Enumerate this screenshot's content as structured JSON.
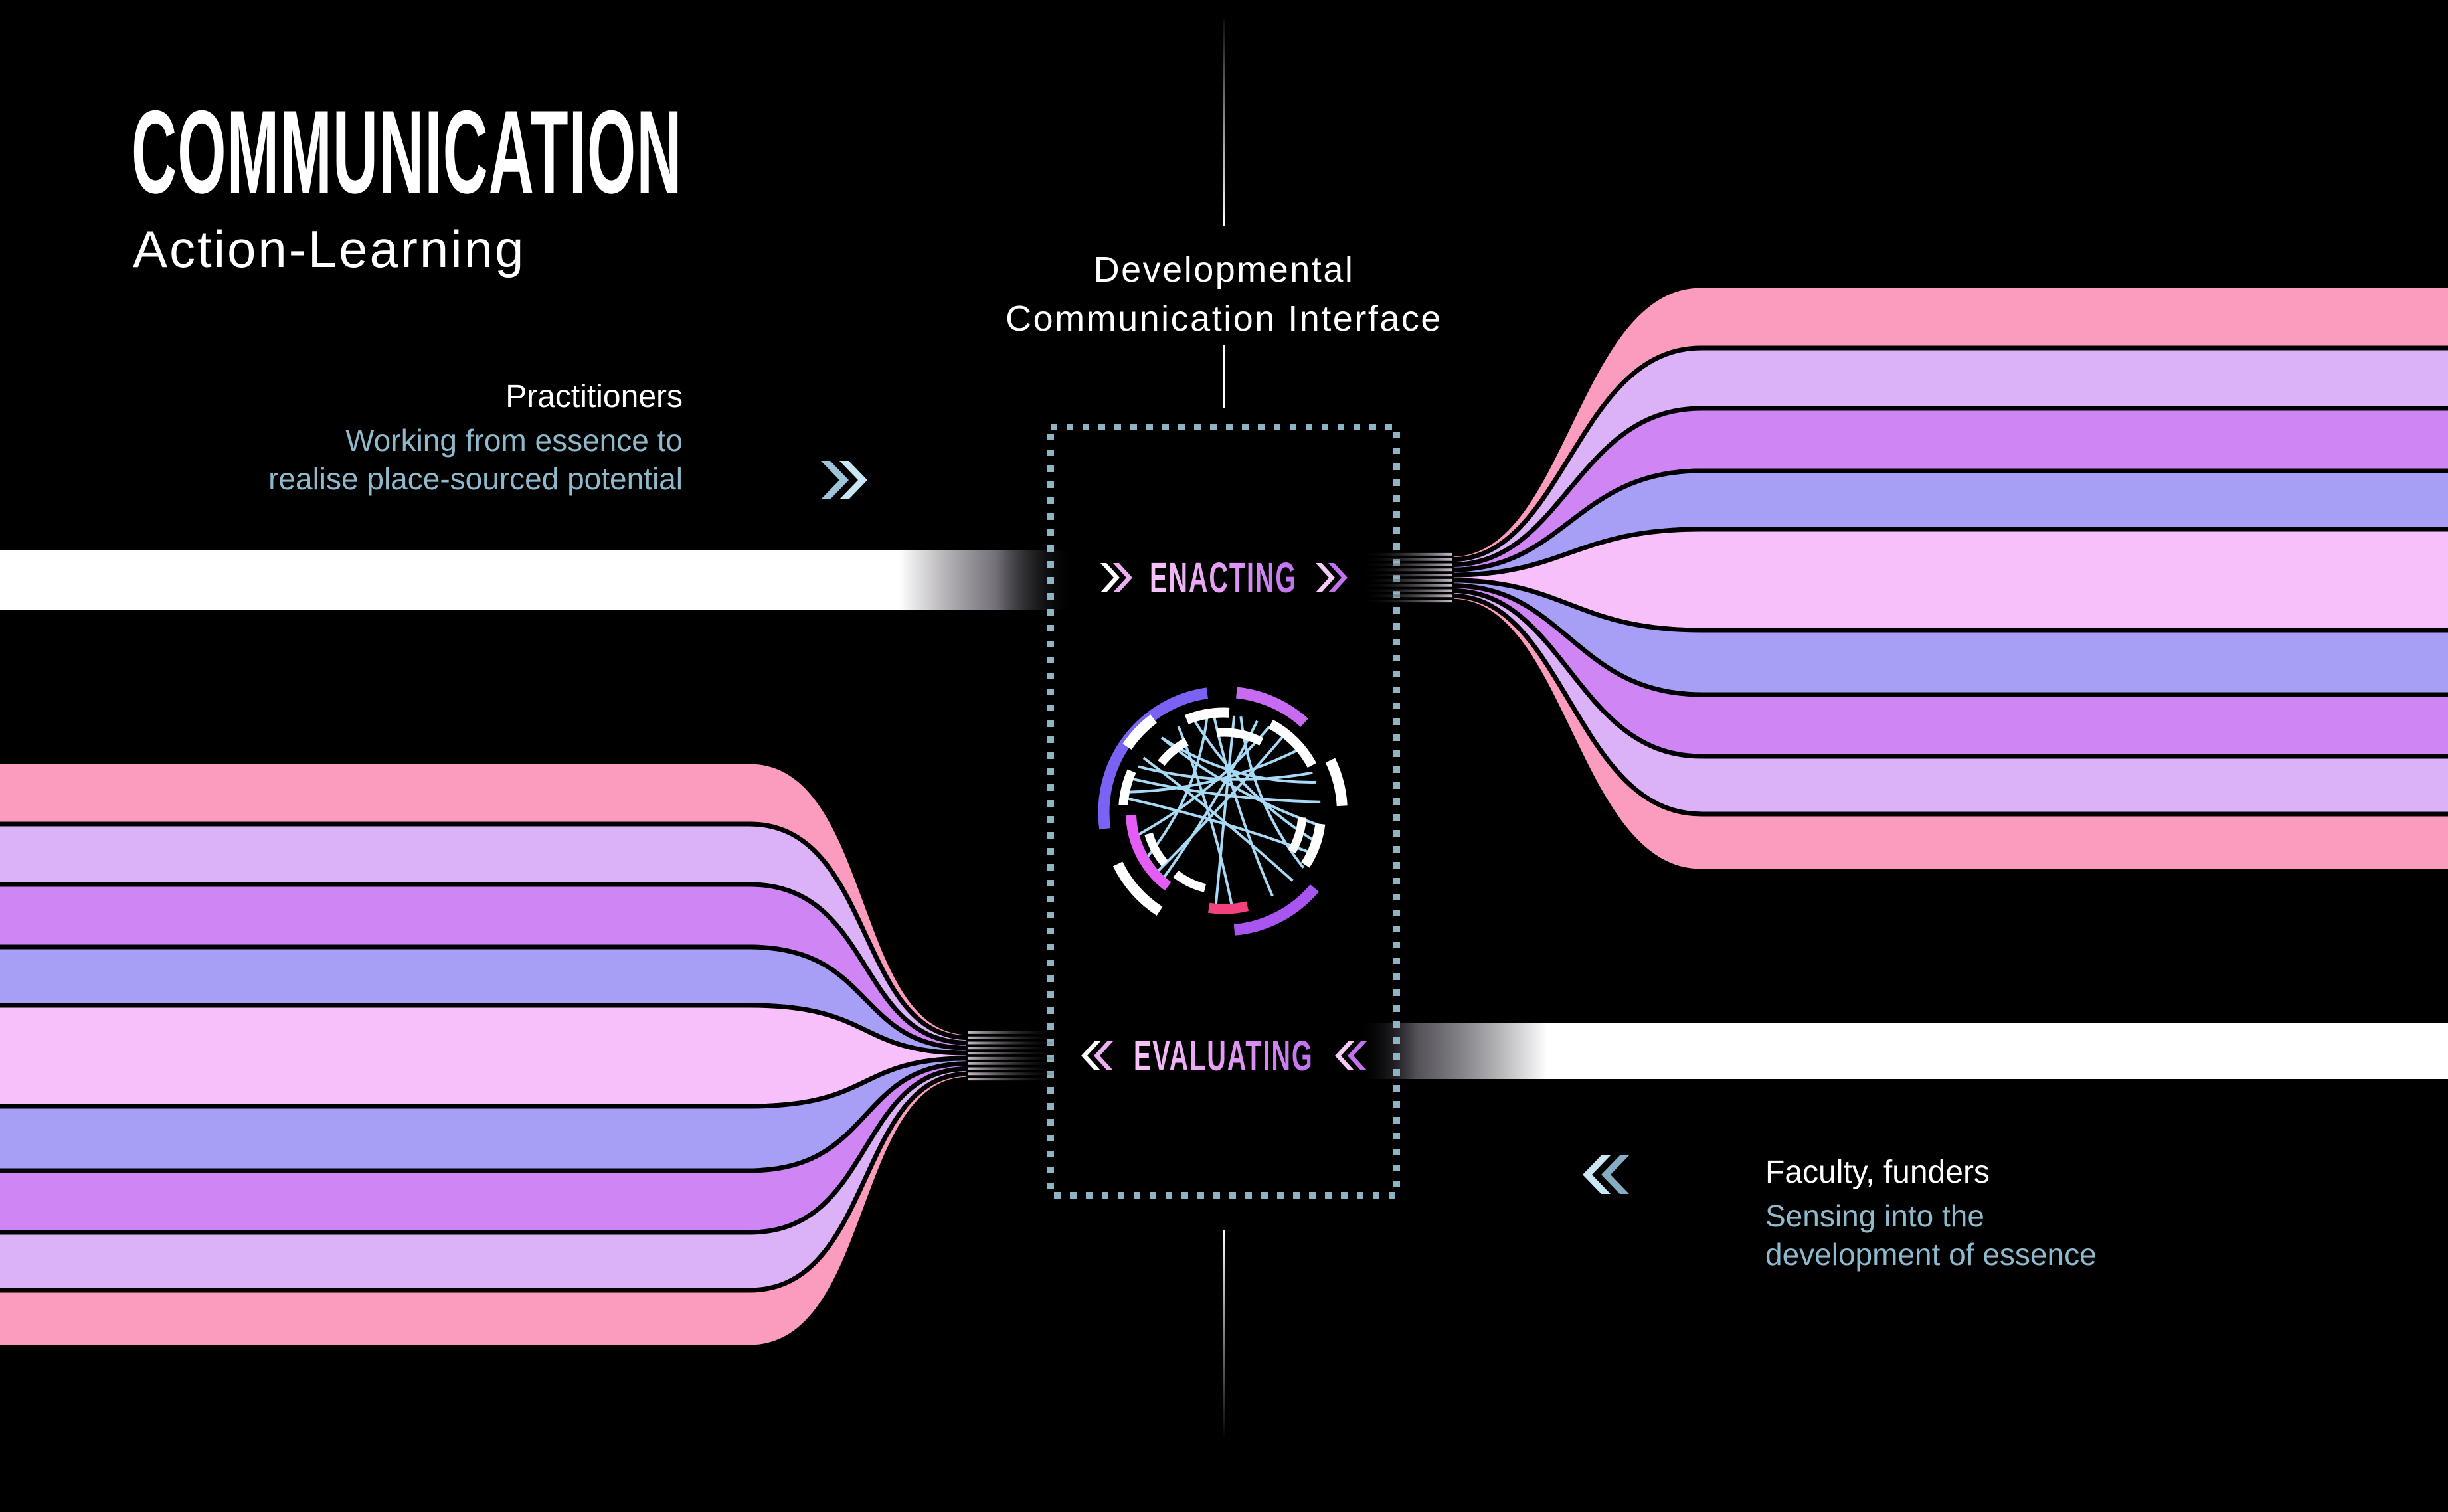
{
  "header": {
    "title": "COMMUNICATION",
    "subtitle": "Action-Learning"
  },
  "interface_panel": {
    "label_line1": "Developmental",
    "label_line2": "Communication Interface",
    "enacting_label": "ENACTING",
    "evaluating_label": "EVALUATING",
    "border_color": "#8FB3C4"
  },
  "practitioners": {
    "name": "Practitioners",
    "description_line1": "Working from essence to",
    "description_line2": "realise place-sourced potential",
    "direction": "double-chevron-right"
  },
  "faculty": {
    "name": "Faculty, funders",
    "description_line1": "Sensing into the",
    "description_line2": "development of essence",
    "direction": "double-chevron-left"
  },
  "colors": {
    "background": "#000000",
    "text_white": "#FFFFFF",
    "text_blue": "#8FB9CC",
    "dotted_border": "#8FB3C4",
    "stream_bar": "#FFFFFF",
    "label_gradient_start": "#F7C6F8",
    "label_gradient_end": "#BF72EE",
    "chevron_blue_light": "#C9E6F5",
    "chevron_blue_dark": "#85ACC2"
  },
  "flows": {
    "band_colors": [
      "#FB9CBE",
      "#DBB2F8",
      "#CF85F4",
      "#A79EF6",
      "#F8C0FA",
      "#A79EF6",
      "#CF85F4",
      "#DBB2F8",
      "#FB9CBE"
    ]
  },
  "hub_icon": {
    "chord_color": "#A8D9F5",
    "arcs": [
      {
        "r": 181,
        "w": 17,
        "a1": 98,
        "a2": 188,
        "color": "#7B62F5"
      },
      {
        "r": 181,
        "w": 17,
        "a1": 48,
        "a2": 84,
        "color": "#C76BF2"
      },
      {
        "r": 178,
        "w": 16,
        "a1": 3,
        "a2": 26,
        "color": "#FFFFFF"
      },
      {
        "r": 178,
        "w": 17,
        "a1": -85,
        "a2": -40,
        "color": "#A855F2"
      },
      {
        "r": 178,
        "w": 16,
        "a1": 206,
        "a2": 237,
        "color": "#FFFFFF"
      },
      {
        "r": 176,
        "w": 16,
        "a1": 127,
        "a2": 146,
        "color": "#FFFFFF"
      },
      {
        "r": 150,
        "w": 15,
        "a1": 87,
        "a2": 112,
        "color": "#FFFFFF"
      },
      {
        "r": 150,
        "w": 15,
        "a1": 28,
        "a2": 62,
        "color": "#FFFFFF"
      },
      {
        "r": 140,
        "w": 16,
        "a1": 182,
        "a2": 233,
        "color": "#E45EF5"
      },
      {
        "r": 152,
        "w": 14,
        "a1": 156,
        "a2": 176,
        "color": "#FFFFFF"
      },
      {
        "r": 146,
        "w": 15,
        "a1": -33,
        "a2": -7,
        "color": "#FFFFFF"
      },
      {
        "r": 146,
        "w": 15,
        "a1": -99,
        "a2": -76,
        "color": "#F2427C"
      },
      {
        "r": 120,
        "w": 13,
        "a1": 62,
        "a2": 95,
        "color": "#FFFFFF"
      },
      {
        "r": 120,
        "w": 13,
        "a1": 118,
        "a2": 142,
        "color": "#FFFFFF"
      },
      {
        "r": 118,
        "w": 13,
        "a1": -30,
        "a2": -4,
        "color": "#FFFFFF"
      },
      {
        "r": 118,
        "w": 13,
        "a1": 196,
        "a2": 221,
        "color": "#FFFFFF"
      },
      {
        "r": 118,
        "w": 13,
        "a1": -128,
        "a2": -104,
        "color": "#FFFFFF"
      }
    ],
    "chords": [
      [
        84,
        -95
      ],
      [
        96,
        -60
      ],
      [
        108,
        -18
      ],
      [
        70,
        -132
      ],
      [
        118,
        -85
      ],
      [
        130,
        18
      ],
      [
        146,
        -45
      ],
      [
        160,
        6
      ],
      [
        172,
        -25
      ],
      [
        100,
        212
      ],
      [
        62,
        196
      ],
      [
        40,
        168
      ],
      [
        24,
        152
      ],
      [
        -8,
        130
      ],
      [
        80,
        -35
      ],
      [
        52,
        222
      ]
    ]
  }
}
